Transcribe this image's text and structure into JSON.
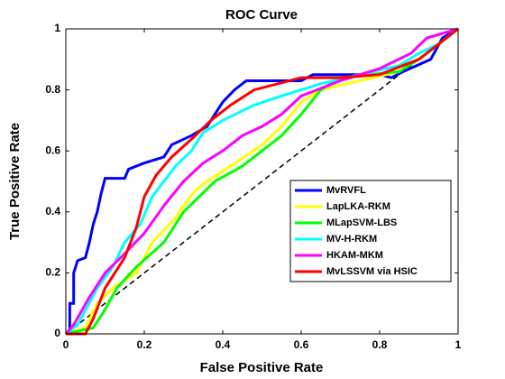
{
  "chart_data": {
    "type": "line",
    "title": "ROC Curve",
    "x_label": "False Positive Rate",
    "y_label": "True Positive Rate",
    "xlim": [
      0,
      1
    ],
    "ylim": [
      0,
      1
    ],
    "xticks": [
      0,
      0.2,
      0.4,
      0.6,
      0.8,
      1
    ],
    "yticks": [
      0,
      0.2,
      0.4,
      0.6,
      0.8,
      1
    ],
    "legend": "lower right",
    "series": [
      {
        "name": "MvRVFL",
        "color": "#0000ff",
        "x": [
          0,
          0.01,
          0.01,
          0.02,
          0.02,
          0.03,
          0.05,
          0.06,
          0.07,
          0.08,
          0.09,
          0.1,
          0.15,
          0.16,
          0.2,
          0.25,
          0.27,
          0.32,
          0.36,
          0.4,
          0.43,
          0.46,
          0.6,
          0.63,
          0.8,
          0.83,
          0.86,
          0.93,
          0.96,
          1
        ],
        "values": [
          0,
          0,
          0.1,
          0.1,
          0.2,
          0.24,
          0.25,
          0.3,
          0.36,
          0.4,
          0.46,
          0.51,
          0.51,
          0.54,
          0.56,
          0.58,
          0.62,
          0.65,
          0.68,
          0.76,
          0.8,
          0.83,
          0.83,
          0.85,
          0.85,
          0.84,
          0.86,
          0.9,
          0.97,
          1
        ]
      },
      {
        "name": "LapLKA-RKM",
        "color": "#ffff00",
        "x": [
          0,
          0.05,
          0.08,
          0.12,
          0.18,
          0.22,
          0.28,
          0.3,
          0.33,
          0.36,
          0.42,
          0.5,
          0.55,
          0.6,
          0.65,
          0.75,
          0.85,
          0.92,
          1
        ],
        "values": [
          0,
          0.02,
          0.1,
          0.15,
          0.2,
          0.3,
          0.38,
          0.42,
          0.47,
          0.5,
          0.55,
          0.62,
          0.68,
          0.76,
          0.8,
          0.83,
          0.86,
          0.92,
          1
        ]
      },
      {
        "name": "MLapSVM-LBS",
        "color": "#00ff00",
        "x": [
          0,
          0.07,
          0.1,
          0.13,
          0.18,
          0.25,
          0.3,
          0.34,
          0.38,
          0.45,
          0.5,
          0.55,
          0.6,
          0.65,
          0.7,
          0.85,
          0.9,
          0.95,
          1
        ],
        "values": [
          0,
          0.02,
          0.08,
          0.15,
          0.22,
          0.3,
          0.4,
          0.45,
          0.5,
          0.55,
          0.6,
          0.65,
          0.72,
          0.8,
          0.84,
          0.86,
          0.9,
          0.95,
          1
        ]
      },
      {
        "name": "MV-H-RKM",
        "color": "#00ffff",
        "x": [
          0,
          0.03,
          0.08,
          0.12,
          0.15,
          0.19,
          0.22,
          0.25,
          0.28,
          0.32,
          0.35,
          0.4,
          0.48,
          0.55,
          0.65,
          0.75,
          0.85,
          0.9,
          0.95,
          1
        ],
        "values": [
          0,
          0.03,
          0.15,
          0.22,
          0.3,
          0.36,
          0.45,
          0.5,
          0.55,
          0.6,
          0.66,
          0.7,
          0.75,
          0.78,
          0.82,
          0.85,
          0.88,
          0.92,
          0.95,
          1
        ]
      },
      {
        "name": "HKAM-MKM",
        "color": "#ff00ff",
        "x": [
          0,
          0.02,
          0.06,
          0.1,
          0.14,
          0.2,
          0.25,
          0.3,
          0.35,
          0.4,
          0.45,
          0.5,
          0.55,
          0.6,
          0.7,
          0.8,
          0.88,
          0.92,
          1
        ],
        "values": [
          0,
          0.03,
          0.12,
          0.2,
          0.25,
          0.33,
          0.42,
          0.5,
          0.56,
          0.6,
          0.65,
          0.68,
          0.72,
          0.78,
          0.83,
          0.87,
          0.92,
          0.97,
          1
        ]
      },
      {
        "name": "MvLSSVM via HSIC",
        "color": "#ff0000",
        "x": [
          0,
          0.05,
          0.07,
          0.1,
          0.15,
          0.18,
          0.2,
          0.23,
          0.27,
          0.33,
          0.37,
          0.42,
          0.48,
          0.6,
          0.7,
          0.8,
          0.9,
          0.95,
          1
        ],
        "values": [
          0,
          0,
          0.05,
          0.15,
          0.25,
          0.35,
          0.45,
          0.52,
          0.58,
          0.65,
          0.7,
          0.75,
          0.8,
          0.84,
          0.84,
          0.85,
          0.9,
          0.95,
          1
        ]
      }
    ]
  }
}
